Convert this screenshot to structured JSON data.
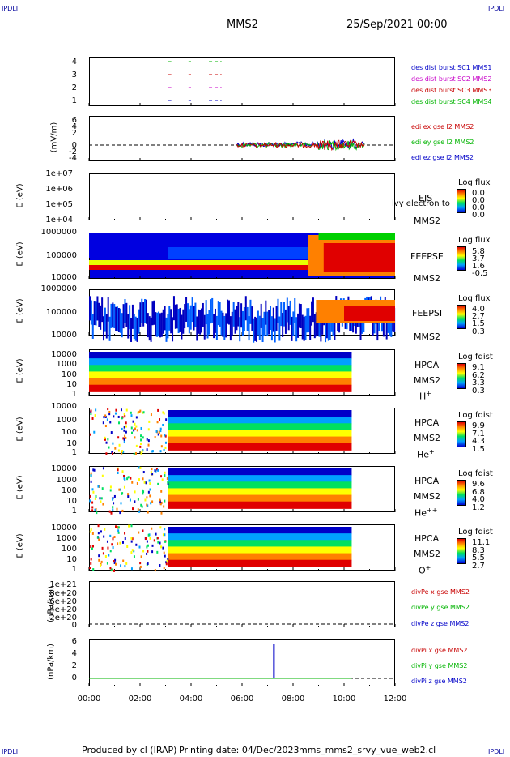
{
  "header": {
    "left_tag": "IPDLI",
    "right_tag": "IPDLI",
    "spacecraft": "MMS2",
    "datetime": "25/Sep/2021 00:00"
  },
  "footer": {
    "left_tag": "IPDLI",
    "right_tag": "IPDLI",
    "credit": "Produced by cl (IRAP)",
    "print_date": "Printing date: 04/Dec/2023",
    "file": "mms_mms2_srvy_vue_web2.cl"
  },
  "x_axis": {
    "ticks": [
      "00:00",
      "02:00",
      "04:00",
      "06:00",
      "08:00",
      "10:00",
      "12:00"
    ]
  },
  "panels": {
    "p1": {
      "yticks": [
        "4",
        "3",
        "2",
        "1"
      ],
      "legend": [
        {
          "text": "des dist burst SC1 MMS1",
          "color": "#0000c8"
        },
        {
          "text": "des dist burst SC2 MMS2",
          "color": "#c800c8"
        },
        {
          "text": "des dist burst SC3 MMS3",
          "color": "#c80000"
        },
        {
          "text": "des dist burst SC4 MMS4",
          "color": "#00b400"
        }
      ]
    },
    "p2": {
      "ylabel": "(mV/m)",
      "yticks": [
        "6",
        "4",
        "2",
        "0",
        "-2",
        "-4"
      ],
      "legend": [
        {
          "text": "edi ex gse l2 MMS2",
          "color": "#c80000"
        },
        {
          "text": "edi ey gse l2 MMS2",
          "color": "#00b400"
        },
        {
          "text": "edi ez gse l2 MMS2",
          "color": "#0000c8"
        }
      ]
    },
    "p3": {
      "ylabel": "E (eV)",
      "yticks": [
        "1e+07",
        "1e+06",
        "1e+05",
        "1e+04"
      ],
      "label1": "EIS",
      "label2": "MMS2",
      "overlay": "lvy electron to",
      "cb_title": "Log flux",
      "cb_vals": [
        "0.0",
        "0.0",
        "0.0",
        "0.0"
      ]
    },
    "p4": {
      "ylabel": "E (eV)",
      "yticks": [
        "1000000",
        "100000",
        "10000"
      ],
      "label1": "FEEPSE",
      "label2": "MMS2",
      "cb_title": "Log flux",
      "cb_vals": [
        "5.8",
        "3.7",
        "1.6",
        "-0.5"
      ]
    },
    "p5": {
      "ylabel": "E (eV)",
      "yticks": [
        "1000000",
        "100000",
        "10000"
      ],
      "label1": "FEEPSI",
      "label2": "MMS2",
      "cb_title": "Log flux",
      "cb_vals": [
        "4.0",
        "2.7",
        "1.5",
        "0.3"
      ]
    },
    "p6": {
      "ylabel": "E (eV)",
      "yticks": [
        "10000",
        "1000",
        "100",
        "10",
        "1"
      ],
      "label1": "HPCA",
      "label2": "MMS2",
      "species": "H",
      "sup": "+",
      "cb_title": "Log fdist",
      "cb_vals": [
        "9.1",
        "6.2",
        "3.3",
        "0.3"
      ]
    },
    "p7": {
      "ylabel": "E (eV)",
      "yticks": [
        "10000",
        "1000",
        "100",
        "10",
        "1"
      ],
      "label1": "HPCA",
      "label2": "MMS2",
      "species": "He",
      "sup": "+",
      "cb_title": "Log fdist",
      "cb_vals": [
        "9.9",
        "7.1",
        "4.3",
        "1.5"
      ]
    },
    "p8": {
      "ylabel": "E (eV)",
      "yticks": [
        "10000",
        "1000",
        "100",
        "10",
        "1"
      ],
      "label1": "HPCA",
      "label2": "MMS2",
      "species": "He",
      "sup": "++",
      "cb_title": "Log fdist",
      "cb_vals": [
        "9.6",
        "6.8",
        "4.0",
        "1.2"
      ]
    },
    "p9": {
      "ylabel": "E (eV)",
      "yticks": [
        "10000",
        "1000",
        "100",
        "10",
        "1"
      ],
      "label1": "HPCA",
      "label2": "MMS2",
      "species": "O",
      "sup": "+",
      "cb_title": "Log fdist",
      "cb_vals": [
        "11.1",
        "8.3",
        "5.5",
        "2.7"
      ]
    },
    "p10": {
      "ylabel": "(nPa/km)",
      "yticks": [
        "1e+21",
        "8e+20",
        "6e+20",
        "4e+20",
        "2e+20",
        "0"
      ],
      "legend": [
        {
          "text": "divPe x gse MMS2",
          "color": "#c80000"
        },
        {
          "text": "divPe y gse MMS2",
          "color": "#00b400"
        },
        {
          "text": "divPe z gse MMS2",
          "color": "#0000c8"
        }
      ]
    },
    "p11": {
      "ylabel": "(nPa/km)",
      "yticks": [
        "6",
        "4",
        "2",
        "0"
      ],
      "legend": [
        {
          "text": "divPi x gse MMS2",
          "color": "#c80000"
        },
        {
          "text": "divPi y gse MMS2",
          "color": "#00b400"
        },
        {
          "text": "divPi z gse MMS2",
          "color": "#0000c8"
        }
      ]
    }
  },
  "chart_data": {
    "type": "multi-panel time series",
    "x_unit": "UT hours",
    "x_range": [
      0,
      12
    ],
    "burst_intervals": {
      "time_hours": [
        [
          3.1,
          3.3
        ],
        [
          3.9,
          4.0
        ],
        [
          4.7,
          5.2
        ]
      ],
      "spacecraft": [
        1,
        2,
        3,
        4
      ]
    },
    "edi_coverage_hours": [
      5.8,
      10.8
    ],
    "feeps_data_end_hours": 12,
    "hpca_data_end_hours": 10.3,
    "divPi_spike": {
      "time_hours": 7.25,
      "value": 5.7
    }
  }
}
